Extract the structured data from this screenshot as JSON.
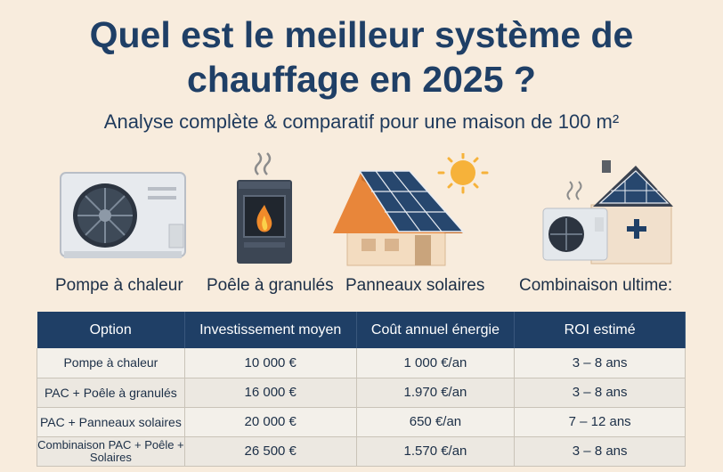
{
  "title": "Quel est le meilleur système de chauffage en 2025 ?",
  "subtitle": "Analyse complète & comparatif pour une maison de 100 m²",
  "systems": [
    {
      "label": "Pompe à chaleur",
      "icon": "heat-pump-icon"
    },
    {
      "label": "Poêle à granulés",
      "icon": "pellet-stove-icon"
    },
    {
      "label": "Panneaux solaires",
      "icon": "solar-house-icon"
    },
    {
      "label": "Combinaison ultime:",
      "icon": "combo-system-icon"
    }
  ],
  "table": {
    "headers": [
      "Option",
      "Investissement moyen",
      "Coût annuel énergie",
      "ROI estimé"
    ],
    "rows": [
      [
        "Pompe à chaleur",
        "10 000 €",
        "1 000 €/an",
        "3 – 8 ans"
      ],
      [
        "PAC + Poêle à granulés",
        "16 000 €",
        "1.970 €/an",
        "3 – 8 ans"
      ],
      [
        "PAC + Panneaux solaires",
        "20 000 €",
        "650 €/an",
        "7 – 12 ans"
      ],
      [
        "Combinaison PAC + Poêle + Solaires",
        "26 500 €",
        "1.570 €/an",
        "3 – 8 ans"
      ]
    ]
  },
  "colors": {
    "navy": "#1f3f66",
    "background": "#f8ecdd",
    "accent_orange": "#f08a2a"
  }
}
